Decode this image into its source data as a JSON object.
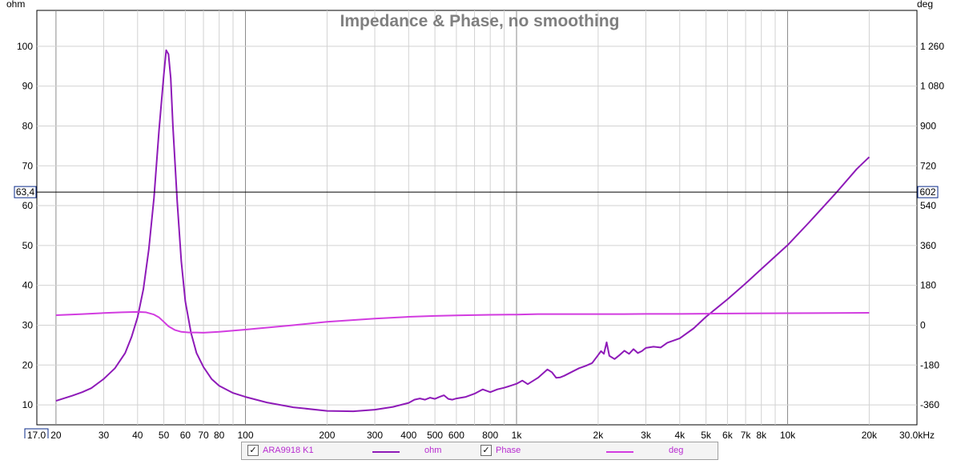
{
  "chart_data": {
    "type": "line",
    "title": "Impedance & Phase, no smoothing",
    "xscale": "log",
    "xlim": [
      17,
      30000
    ],
    "ylim": [
      5,
      109
    ],
    "y2lim": [
      -450,
      1422
    ],
    "ylabel": "ohm",
    "y2label": "deg",
    "x_ticks": [
      {
        "v": 20,
        "label": "20",
        "major": true
      },
      {
        "v": 30,
        "label": "30",
        "major": false
      },
      {
        "v": 40,
        "label": "40",
        "major": false
      },
      {
        "v": 50,
        "label": "50",
        "major": false
      },
      {
        "v": 60,
        "label": "60",
        "major": false
      },
      {
        "v": 70,
        "label": "70",
        "major": false
      },
      {
        "v": 80,
        "label": "80",
        "major": false
      },
      {
        "v": 90,
        "label": "",
        "major": false
      },
      {
        "v": 100,
        "label": "100",
        "major": true
      },
      {
        "v": 200,
        "label": "200",
        "major": false
      },
      {
        "v": 300,
        "label": "300",
        "major": false
      },
      {
        "v": 400,
        "label": "400",
        "major": false
      },
      {
        "v": 500,
        "label": "500",
        "major": false
      },
      {
        "v": 600,
        "label": "600",
        "major": false
      },
      {
        "v": 700,
        "label": "",
        "major": false
      },
      {
        "v": 800,
        "label": "800",
        "major": false
      },
      {
        "v": 900,
        "label": "",
        "major": false
      },
      {
        "v": 1000,
        "label": "1k",
        "major": true
      },
      {
        "v": 2000,
        "label": "2k",
        "major": false
      },
      {
        "v": 3000,
        "label": "3k",
        "major": false
      },
      {
        "v": 4000,
        "label": "4k",
        "major": false
      },
      {
        "v": 5000,
        "label": "5k",
        "major": false
      },
      {
        "v": 6000,
        "label": "6k",
        "major": false
      },
      {
        "v": 7000,
        "label": "7k",
        "major": false
      },
      {
        "v": 8000,
        "label": "8k",
        "major": false
      },
      {
        "v": 9000,
        "label": "",
        "major": false
      },
      {
        "v": 10000,
        "label": "10k",
        "major": true
      },
      {
        "v": 20000,
        "label": "20k",
        "major": false
      },
      {
        "v": 30000,
        "label": "30,0kHz",
        "major": false
      }
    ],
    "y_ticks": [
      10,
      20,
      30,
      40,
      50,
      60,
      70,
      80,
      90,
      100
    ],
    "y2_ticks": [
      {
        "v": -360,
        "label": "-360"
      },
      {
        "v": -180,
        "label": "-180"
      },
      {
        "v": 0,
        "label": "0"
      },
      {
        "v": 180,
        "label": "180"
      },
      {
        "v": 360,
        "label": "360"
      },
      {
        "v": 540,
        "label": "540"
      },
      {
        "v": 720,
        "label": "720"
      },
      {
        "v": 900,
        "label": "900"
      },
      {
        "v": 1080,
        "label": "1 080"
      },
      {
        "v": 1260,
        "label": "1 260"
      }
    ],
    "cursor": {
      "y_value": 63.4,
      "y_label": "63,4",
      "y2_label": "602",
      "x_label": "17,0"
    },
    "series": [
      {
        "name": "ohm",
        "axis": "left",
        "color": "#8e1ab8",
        "x": [
          20,
          23,
          25,
          27,
          30,
          33,
          36,
          38,
          40,
          42,
          44,
          46,
          48,
          50,
          51,
          52,
          53,
          54,
          56,
          58,
          60,
          63,
          66,
          70,
          75,
          80,
          90,
          100,
          120,
          150,
          200,
          250,
          300,
          350,
          400,
          420,
          440,
          460,
          480,
          500,
          520,
          540,
          560,
          580,
          600,
          650,
          700,
          750,
          800,
          850,
          900,
          950,
          1000,
          1050,
          1100,
          1200,
          1300,
          1350,
          1400,
          1450,
          1500,
          1600,
          1700,
          1800,
          1900,
          2000,
          2050,
          2100,
          2150,
          2200,
          2300,
          2400,
          2500,
          2600,
          2700,
          2800,
          2900,
          3000,
          3200,
          3400,
          3600,
          4000,
          4500,
          5000,
          6000,
          7000,
          8000,
          10000,
          12000,
          15000,
          18000,
          20000
        ],
        "y": [
          11,
          12.3,
          13.2,
          14.2,
          16.5,
          19.2,
          23,
          27,
          32,
          39,
          49,
          62,
          79,
          93,
          99,
          98,
          92,
          80,
          61,
          46,
          36,
          28,
          23,
          19.5,
          16.5,
          14.8,
          13,
          12,
          10.6,
          9.4,
          8.5,
          8.4,
          8.8,
          9.5,
          10.5,
          11.3,
          11.6,
          11.3,
          11.8,
          11.5,
          12,
          12.4,
          11.5,
          11.3,
          11.6,
          12,
          12.8,
          13.9,
          13.2,
          13.9,
          14.3,
          14.8,
          15.3,
          16.1,
          15.2,
          16.8,
          18.9,
          18.2,
          16.8,
          16.9,
          17.3,
          18.3,
          19.2,
          19.8,
          20.5,
          22.5,
          23.5,
          22.8,
          25.7,
          22.3,
          21.5,
          22.5,
          23.6,
          22.8,
          24,
          23,
          23.5,
          24.3,
          24.6,
          24.4,
          25.6,
          26.7,
          29.2,
          32.1,
          36.5,
          40.5,
          44.1,
          50.1,
          55.8,
          63,
          69.2,
          72.2
        ]
      },
      {
        "name": "deg",
        "axis": "right",
        "color": "#d23ce0",
        "x": [
          20,
          25,
          30,
          35,
          40,
          43,
          46,
          48,
          50,
          52,
          55,
          58,
          62,
          66,
          70,
          80,
          100,
          150,
          200,
          300,
          400,
          500,
          600,
          800,
          1000,
          1200,
          1500,
          2000,
          2500,
          3000,
          4000,
          5000,
          7000,
          10000,
          15000,
          20000
        ],
        "y": [
          45,
          50,
          55,
          58,
          60,
          58,
          48,
          35,
          15,
          -5,
          -22,
          -30,
          -33,
          -33,
          -34,
          -30,
          -20,
          0,
          15,
          30,
          38,
          42,
          44,
          47,
          48,
          50,
          50,
          50,
          50,
          51,
          51,
          52,
          53,
          54,
          55,
          56
        ]
      }
    ]
  },
  "legend": {
    "dataset_name": "ARA9918 K1",
    "series1_label": "ohm",
    "series2_label": "Phase",
    "series3_label": "deg"
  }
}
